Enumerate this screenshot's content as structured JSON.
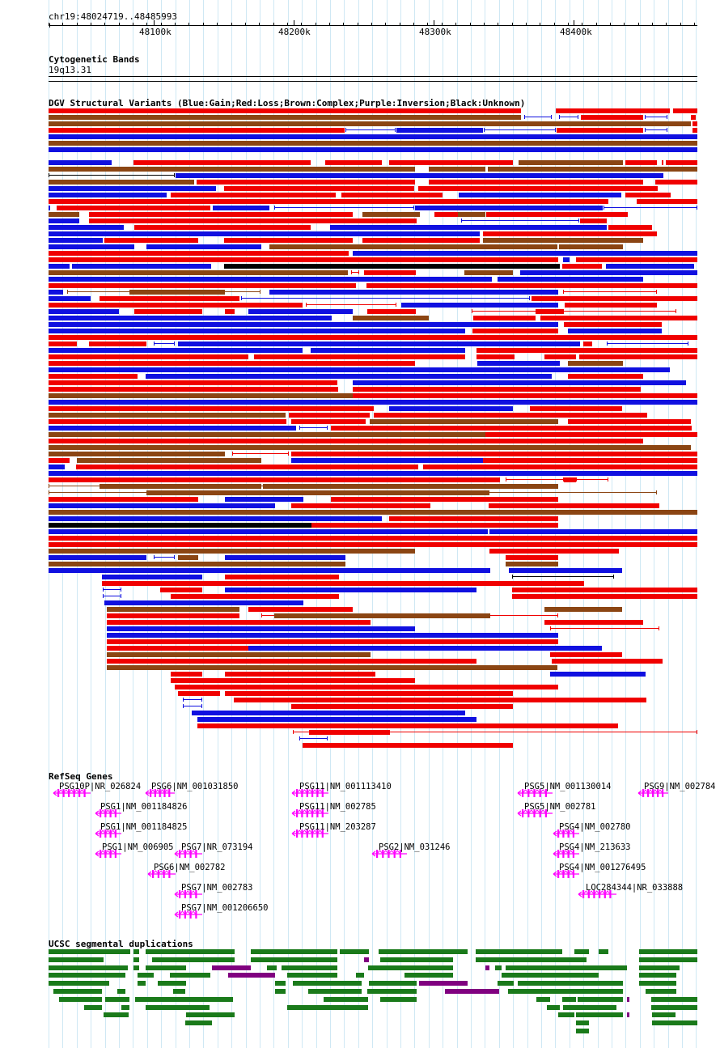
{
  "header": {
    "locus": "chr19:48024719..48485993",
    "ticks": [
      "48100k",
      "48200k",
      "48300k",
      "48400k"
    ]
  },
  "cytoband": {
    "title": "Cytogenetic Bands",
    "band": "19q13.31"
  },
  "dgv": {
    "title": "DGV Structural Variants (Blue:Gain;Red:Loss;Brown:Complex;Purple:Inversion;Black:Unknown)",
    "colors": {
      "B": "#1010e0",
      "R": "#f00000",
      "N": "#8b4513",
      "K": "#000000",
      "P": "#800080"
    }
  },
  "refseq": {
    "title": "RefSeq Genes",
    "color": "#ff00ff",
    "genes": [
      "PSG10P|NR_026824",
      "PSG6|NM_001031850",
      "PSG11|NM_001113410",
      "PSG5|NM_001130014",
      "PSG9|NM_002784",
      "PSG1|NM_001184826",
      "PSG11|NM_002785",
      "PSG5|NM_002781",
      "PSG1|NM_001184825",
      "PSG11|NM_203287",
      "PSG4|NM_002780",
      "PSG1|NM_006905",
      "PSG7|NR_073194",
      "PSG2|NM_031246",
      "PSG4|NM_213633",
      "PSG6|NM_002782",
      "PSG4|NM_001276495",
      "PSG7|NM_002783",
      "LOC284344|NR_033888",
      "PSG7|NM_001206650"
    ]
  },
  "segdup": {
    "title": "UCSC segmental duplications",
    "colors": {
      "G": "#1a7a1a",
      "P": "#800080"
    }
  }
}
